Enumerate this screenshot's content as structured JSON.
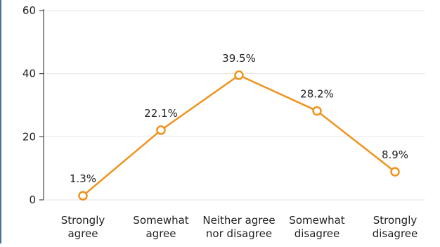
{
  "chart_data": {
    "type": "line",
    "title": "",
    "xlabel": "",
    "ylabel": "",
    "categories": [
      [
        "Strongly",
        "agree"
      ],
      [
        "Somewhat",
        "agree"
      ],
      [
        "Neither agree",
        "nor disagree"
      ],
      [
        "Somewhat",
        "disagree"
      ],
      [
        "Strongly",
        "disagree"
      ]
    ],
    "series": [
      {
        "values": [
          1.3,
          22.1,
          39.5,
          28.2,
          8.9
        ],
        "labels": [
          "1.3%",
          "22.1%",
          "39.5%",
          "28.2%",
          "8.9%"
        ],
        "color": "#f0931e"
      }
    ],
    "ylim": [
      0,
      60
    ],
    "yticks": [
      0,
      20,
      40,
      60
    ],
    "grid": true,
    "legend": "none",
    "colors": {
      "grid": "#e6e6e6",
      "axis": "#222222",
      "left_border": "#4a6fa5"
    }
  }
}
